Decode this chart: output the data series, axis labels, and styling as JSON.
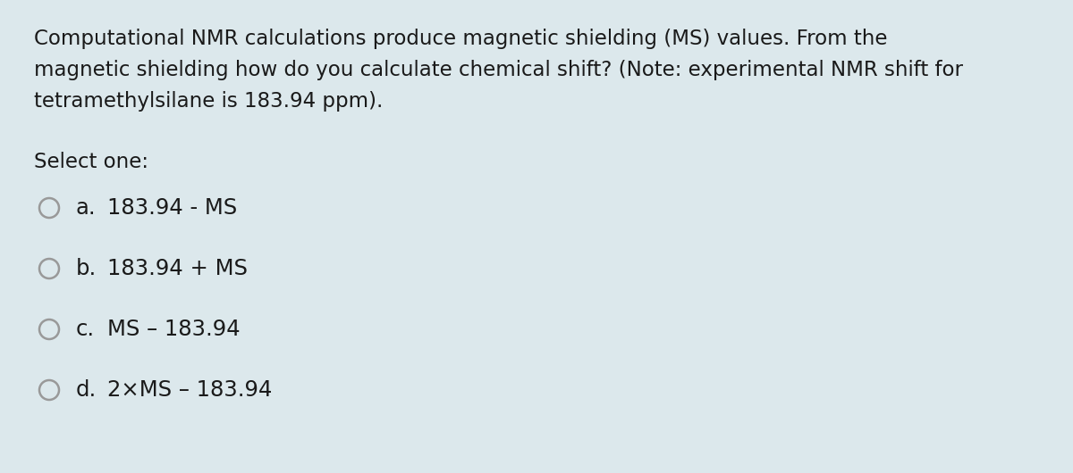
{
  "background_color": "#dce8ec",
  "question_text_lines": [
    "Computational NMR calculations produce magnetic shielding (MS) values. From the",
    "magnetic shielding how do you calculate chemical shift? (Note: experimental NMR shift for",
    "tetramethylsilane is 183.94 ppm)."
  ],
  "select_label": "Select one:",
  "options": [
    {
      "label": "a.",
      "text": "183.94 - MS"
    },
    {
      "label": "b.",
      "text": "183.94 + MS"
    },
    {
      "label": "c.",
      "text": "MS – 183.94"
    },
    {
      "label": "d.",
      "text": "2×MS – 183.94"
    }
  ],
  "text_color": "#1a1a1a",
  "circle_color": "#999999",
  "font_size_question": 16.5,
  "font_size_options": 17.5,
  "font_size_select": 16.5,
  "fig_width": 12.0,
  "fig_height": 5.3
}
